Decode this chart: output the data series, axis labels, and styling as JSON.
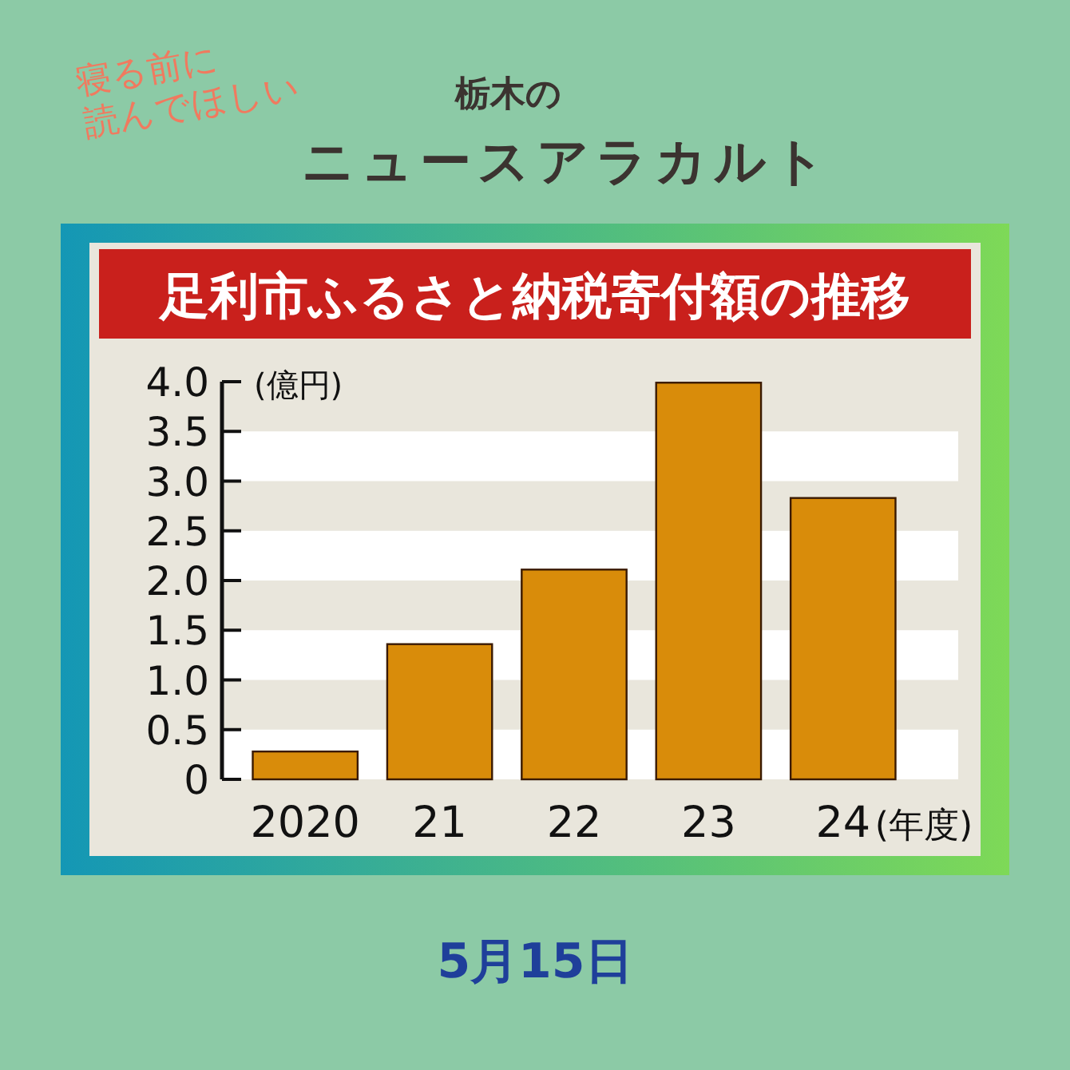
{
  "chart_data": {
    "type": "bar",
    "title": "足利市ふるさと納税寄付額の推移",
    "subtitle": "ニュースアラカルト",
    "annotations": [
      "寝る前に\n読んでほしい",
      "栃木の",
      "5月15日"
    ],
    "ylabel": "(億円)",
    "xlabel": "(年度)",
    "categories": [
      "2020",
      "21",
      "22",
      "23",
      "24"
    ],
    "values": [
      0.28,
      1.36,
      2.11,
      3.99,
      2.83
    ],
    "color": "#d98c0a",
    "ylim": [
      0,
      4
    ],
    "yticks": [
      0,
      0.5,
      {
        "value": 1,
        "label": "1.0"
      },
      1.5,
      {
        "value": 2,
        "label": "2.0"
      },
      2.5,
      {
        "value": 3,
        "label": "3.0"
      },
      3.5,
      {
        "value": 4,
        "label": "4.0"
      }
    ]
  }
}
